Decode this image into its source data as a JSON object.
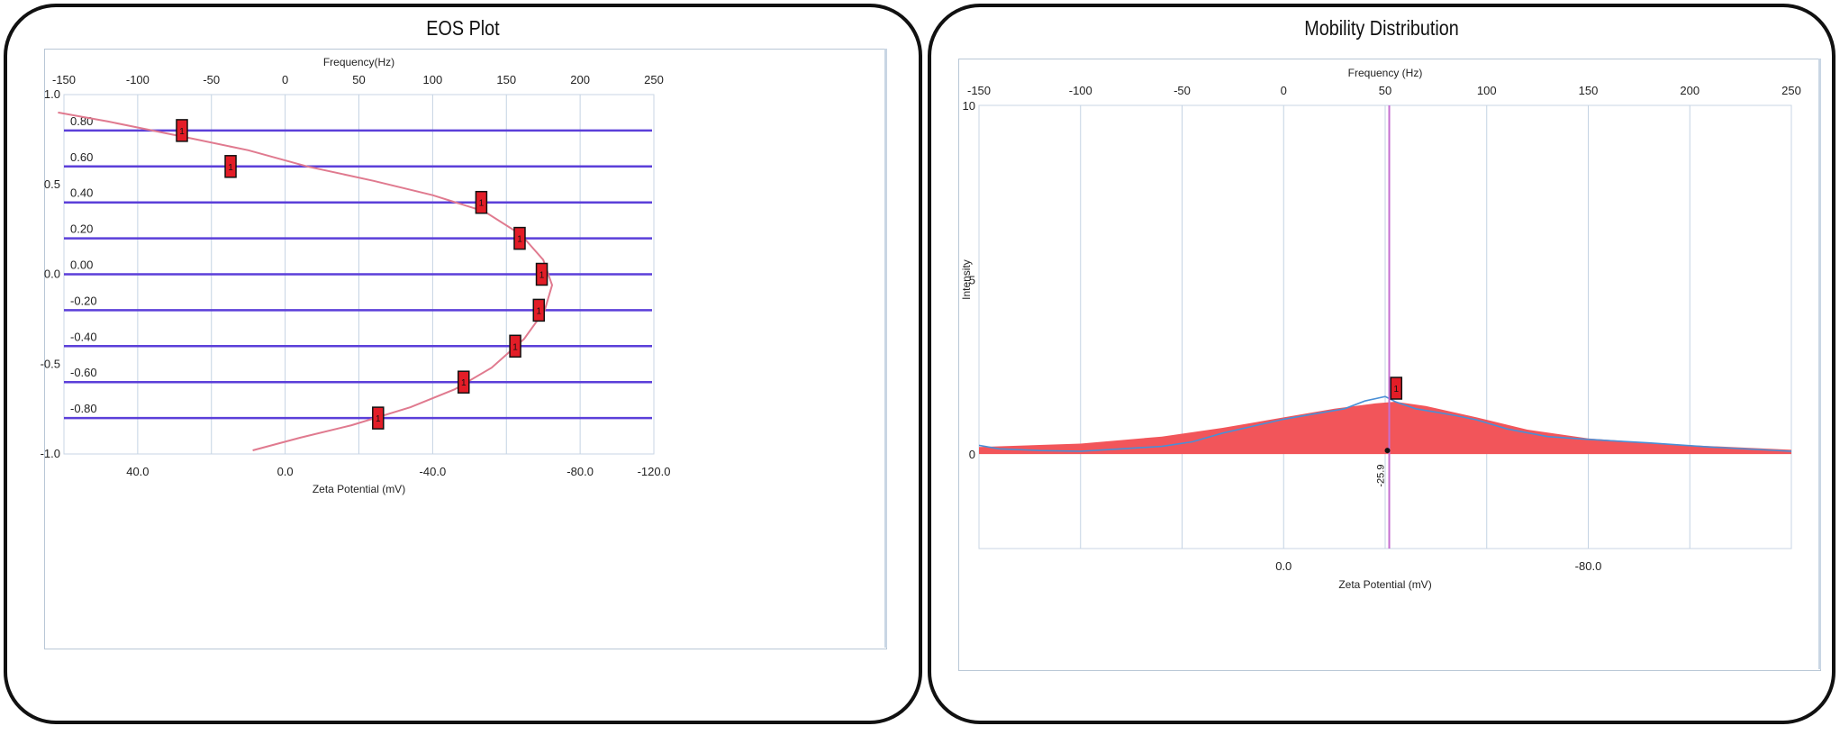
{
  "chart_data": [
    {
      "type": "scatter",
      "title": "EOS Plot",
      "top_axis_label": "Frequency(Hz)",
      "top_axis_range": [
        -150,
        250
      ],
      "top_ticks": [
        "-150",
        "-100",
        "-50",
        "0",
        "50",
        "100",
        "150",
        "200",
        "250"
      ],
      "xlabel": "Zeta Potential (mV)",
      "bottom_ticks": [
        "40.0",
        "0.0",
        "-40.0",
        "-80.0",
        "-120.0"
      ],
      "ylim": [
        -1.0,
        1.0
      ],
      "y_ticks": [
        "1.0",
        "0.5",
        "0.0",
        "-0.5",
        "-1.0"
      ],
      "grid": true,
      "cell_positions": [
        {
          "label": "0.80",
          "y": 0.8
        },
        {
          "label": "0.60",
          "y": 0.6
        },
        {
          "label": "0.40",
          "y": 0.4
        },
        {
          "label": "0.20",
          "y": 0.2
        },
        {
          "label": "0.00",
          "y": 0.0
        },
        {
          "label": "-0.20",
          "y": -0.2
        },
        {
          "label": "-0.40",
          "y": -0.4
        },
        {
          "label": "-0.60",
          "y": -0.6
        },
        {
          "label": "-0.80",
          "y": -0.8
        }
      ],
      "markers": [
        {
          "label": "1",
          "freq": -70,
          "y": 0.8
        },
        {
          "label": "1",
          "freq": -37,
          "y": 0.6
        },
        {
          "label": "1",
          "freq": 133,
          "y": 0.4
        },
        {
          "label": "1",
          "freq": 159,
          "y": 0.2
        },
        {
          "label": "1",
          "freq": 174,
          "y": 0.0
        },
        {
          "label": "1",
          "freq": 172,
          "y": -0.2
        },
        {
          "label": "1",
          "freq": 156,
          "y": -0.4
        },
        {
          "label": "1",
          "freq": 121,
          "y": -0.6
        },
        {
          "label": "1",
          "freq": 63,
          "y": -0.8
        }
      ],
      "fit_curve": [
        {
          "freq": -154,
          "y": 0.9
        },
        {
          "freq": -120,
          "y": 0.85
        },
        {
          "freq": -90,
          "y": 0.8
        },
        {
          "freq": -60,
          "y": 0.75
        },
        {
          "freq": -25,
          "y": 0.69
        },
        {
          "freq": 15,
          "y": 0.6
        },
        {
          "freq": 60,
          "y": 0.52
        },
        {
          "freq": 100,
          "y": 0.44
        },
        {
          "freq": 135,
          "y": 0.35
        },
        {
          "freq": 160,
          "y": 0.22
        },
        {
          "freq": 175,
          "y": 0.08
        },
        {
          "freq": 181,
          "y": -0.06
        },
        {
          "freq": 176,
          "y": -0.2
        },
        {
          "freq": 162,
          "y": -0.36
        },
        {
          "freq": 140,
          "y": -0.52
        },
        {
          "freq": 115,
          "y": -0.64
        },
        {
          "freq": 85,
          "y": -0.74
        },
        {
          "freq": 45,
          "y": -0.84
        },
        {
          "freq": 10,
          "y": -0.91
        },
        {
          "freq": -22,
          "y": -0.98
        }
      ],
      "colors": {
        "cell_line": "#5b3fd9",
        "fit_curve": "#e07a8f",
        "marker": "#e31d27",
        "grid": "#c4d3e3"
      }
    },
    {
      "type": "area",
      "title": "Mobility Distribution",
      "top_axis_label": "Frequency (Hz)",
      "x_range": [
        -150,
        250
      ],
      "top_ticks": [
        "-150",
        "-100",
        "-50",
        "0",
        "50",
        "100",
        "150",
        "200",
        "250"
      ],
      "xlabel": "Zeta Potential (mV)",
      "bottom_ticks": [
        "0.0",
        "-80.0"
      ],
      "ylabel": "Intensity",
      "ylim": [
        0,
        10
      ],
      "y_ticks": [
        "10",
        "5",
        "0"
      ],
      "grid": true,
      "peak_marker": {
        "label": "1",
        "freq": 55
      },
      "peak_line_freq": 52,
      "peak_annotation": "-25.9",
      "distribution": [
        {
          "freq": -150,
          "y": 0.2
        },
        {
          "freq": -100,
          "y": 0.3
        },
        {
          "freq": -60,
          "y": 0.5
        },
        {
          "freq": -30,
          "y": 0.75
        },
        {
          "freq": 0,
          "y": 1.05
        },
        {
          "freq": 25,
          "y": 1.3
        },
        {
          "freq": 45,
          "y": 1.45
        },
        {
          "freq": 55,
          "y": 1.5
        },
        {
          "freq": 70,
          "y": 1.38
        },
        {
          "freq": 95,
          "y": 1.05
        },
        {
          "freq": 120,
          "y": 0.7
        },
        {
          "freq": 150,
          "y": 0.45
        },
        {
          "freq": 190,
          "y": 0.28
        },
        {
          "freq": 250,
          "y": 0.12
        }
      ],
      "measured_line": [
        {
          "freq": -150,
          "y": 0.25
        },
        {
          "freq": -140,
          "y": 0.15
        },
        {
          "freq": -120,
          "y": 0.1
        },
        {
          "freq": -100,
          "y": 0.08
        },
        {
          "freq": -80,
          "y": 0.15
        },
        {
          "freq": -60,
          "y": 0.22
        },
        {
          "freq": -45,
          "y": 0.35
        },
        {
          "freq": -30,
          "y": 0.6
        },
        {
          "freq": -15,
          "y": 0.8
        },
        {
          "freq": 0,
          "y": 1.0
        },
        {
          "freq": 15,
          "y": 1.15
        },
        {
          "freq": 30,
          "y": 1.3
        },
        {
          "freq": 40,
          "y": 1.52
        },
        {
          "freq": 50,
          "y": 1.65
        },
        {
          "freq": 55,
          "y": 1.5
        },
        {
          "freq": 65,
          "y": 1.3
        },
        {
          "freq": 75,
          "y": 1.2
        },
        {
          "freq": 85,
          "y": 1.1
        },
        {
          "freq": 95,
          "y": 0.98
        },
        {
          "freq": 110,
          "y": 0.72
        },
        {
          "freq": 130,
          "y": 0.5
        },
        {
          "freq": 150,
          "y": 0.42
        },
        {
          "freq": 180,
          "y": 0.32
        },
        {
          "freq": 210,
          "y": 0.2
        },
        {
          "freq": 250,
          "y": 0.08
        }
      ],
      "colors": {
        "fill": "#f2555a",
        "measured_line": "#4a8fd6",
        "peak_line": "#c46fd0",
        "marker": "#e31d27",
        "grid": "#c4d3e3"
      }
    }
  ]
}
